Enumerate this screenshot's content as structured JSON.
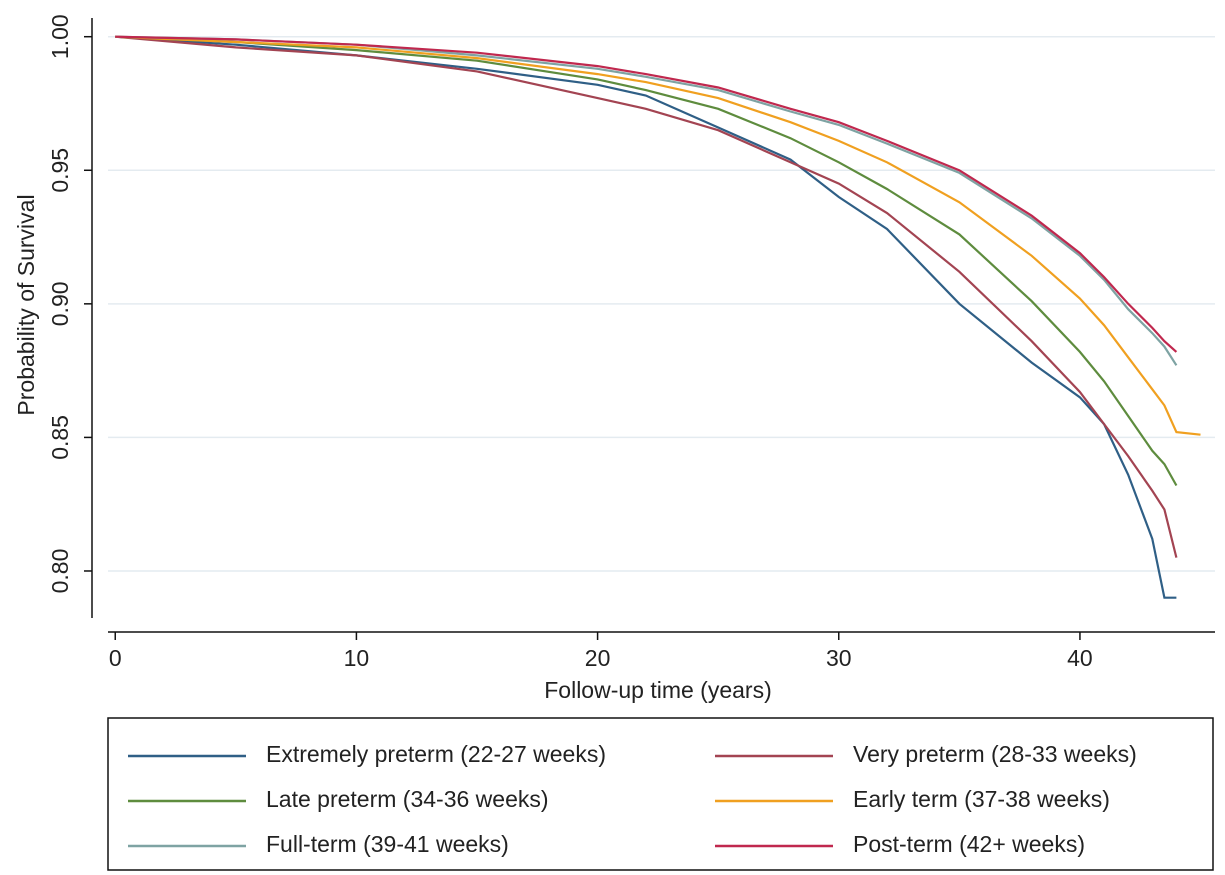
{
  "chart_data": {
    "type": "line",
    "xlabel": "Follow-up time (years)",
    "ylabel": "Probability of Survival",
    "x": [
      0,
      5,
      10,
      15,
      20,
      22,
      25,
      28,
      30,
      32,
      35,
      38,
      40,
      41,
      42,
      43,
      43.5,
      44,
      45
    ],
    "series": [
      {
        "name": "Extremely preterm (22-27 weeks)",
        "color": "#2f5f86",
        "values": [
          1.0,
          0.997,
          0.993,
          0.988,
          0.982,
          0.978,
          0.966,
          0.954,
          0.94,
          0.928,
          0.9,
          0.878,
          0.865,
          0.855,
          0.836,
          0.812,
          0.79,
          0.79,
          null
        ]
      },
      {
        "name": "Very preterm (28-33 weeks)",
        "color": "#a34452",
        "values": [
          1.0,
          0.996,
          0.993,
          0.987,
          0.977,
          0.973,
          0.965,
          0.953,
          0.945,
          0.934,
          0.912,
          0.886,
          0.867,
          0.855,
          0.843,
          0.83,
          0.823,
          0.805,
          null
        ]
      },
      {
        "name": "Late preterm (34-36 weeks)",
        "color": "#5e8c3e",
        "values": [
          1.0,
          0.998,
          0.995,
          0.991,
          0.984,
          0.98,
          0.973,
          0.962,
          0.953,
          0.943,
          0.926,
          0.901,
          0.882,
          0.871,
          0.858,
          0.845,
          0.84,
          0.832,
          null
        ]
      },
      {
        "name": "Early term (37-38 weeks)",
        "color": "#f0a020",
        "values": [
          1.0,
          0.998,
          0.996,
          0.992,
          0.986,
          0.983,
          0.977,
          0.968,
          0.961,
          0.953,
          0.938,
          0.918,
          0.902,
          0.892,
          0.88,
          0.868,
          0.862,
          0.852,
          0.851
        ]
      },
      {
        "name": "Full-term (39-41 weeks)",
        "color": "#7ea3a3",
        "values": [
          1.0,
          0.999,
          0.997,
          0.993,
          0.988,
          0.985,
          0.98,
          0.972,
          0.967,
          0.96,
          0.949,
          0.932,
          0.918,
          0.909,
          0.898,
          0.889,
          0.884,
          0.877,
          null
        ]
      },
      {
        "name": "Post-term (42+ weeks)",
        "color": "#c0284e",
        "values": [
          1.0,
          0.999,
          0.997,
          0.994,
          0.989,
          0.986,
          0.981,
          0.973,
          0.968,
          0.961,
          0.95,
          0.933,
          0.919,
          0.91,
          0.9,
          0.891,
          0.886,
          0.882,
          null
        ]
      }
    ],
    "xlim": [
      -0.3,
      45.6
    ],
    "ylim": [
      0.7824,
      1.007
    ],
    "xticks": [
      0,
      10,
      20,
      30,
      40
    ],
    "yticks": [
      {
        "value": 0.8,
        "label": "0.80"
      },
      {
        "value": 0.85,
        "label": "0.85"
      },
      {
        "value": 0.9,
        "label": "0.90"
      },
      {
        "value": 0.95,
        "label": "0.95"
      },
      {
        "value": 1.0,
        "label": "1.00"
      }
    ],
    "grid": true
  }
}
